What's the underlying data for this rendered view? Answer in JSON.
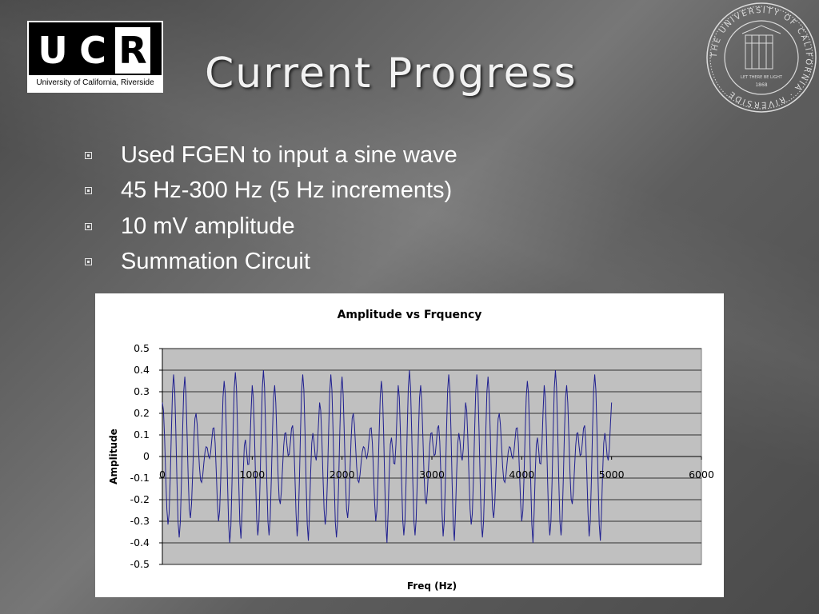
{
  "slide": {
    "title": "Current Progress",
    "logo": {
      "letters": [
        "U",
        "C",
        "R"
      ],
      "subtitle": "University of California, Riverside"
    },
    "seal": {
      "text": "THE UNIVERSITY OF CALIFORNIA · RIVERSIDE",
      "motto": "LET THERE BE LIGHT",
      "year": "1868"
    },
    "bullets": [
      "Used FGEN to input a sine wave",
      "45 Hz-300 Hz (5 Hz increments)",
      "10 mV amplitude",
      "Summation Circuit"
    ]
  },
  "chart_data": {
    "type": "line",
    "title": "Amplitude vs Frquency",
    "xlabel": "Freq (Hz)",
    "ylabel": "Amplitude",
    "xlim": [
      0,
      6000
    ],
    "ylim": [
      -0.5,
      0.5
    ],
    "x_ticks": [
      "0",
      "1000",
      "2000",
      "3000",
      "4000",
      "5000",
      "6000"
    ],
    "y_ticks": [
      "0.5",
      "0.4",
      "0.3",
      "0.2",
      "0.1",
      "0",
      "-0.1",
      "-0.2",
      "-0.3",
      "-0.4",
      "-0.5"
    ],
    "grid": true,
    "plot_background": "#c0c0c0",
    "series": [
      {
        "color": "#1f1f8f",
        "x": [
          0,
          125,
          250,
          375,
          500,
          625,
          750,
          875,
          1000,
          1125,
          1250,
          1375,
          1500,
          1625,
          1750,
          1875,
          2000,
          2125,
          2250,
          2375,
          2500,
          2625,
          2750,
          2875,
          3000,
          3125,
          3250,
          3375,
          3500,
          3625,
          3750,
          3875,
          4000,
          4125,
          4250,
          4375,
          4500,
          4625,
          4750,
          4875,
          5000
        ],
        "y": [
          0.25,
          0.38,
          0.37,
          0.2,
          0.04,
          -0.3,
          -0.4,
          -0.38,
          0.33,
          0.4,
          0.33,
          0.11,
          -0.37,
          -0.39,
          0.25,
          0.38,
          0.37,
          0.2,
          0.04,
          -0.3,
          -0.4,
          0.33,
          0.4,
          0.33,
          0.11,
          -0.37,
          -0.39,
          0.25,
          0.38,
          0.37,
          0.2,
          0.04,
          -0.3,
          -0.4,
          0.33,
          0.4,
          0.33,
          0.11,
          -0.37,
          -0.39,
          0.25
        ]
      }
    ]
  }
}
